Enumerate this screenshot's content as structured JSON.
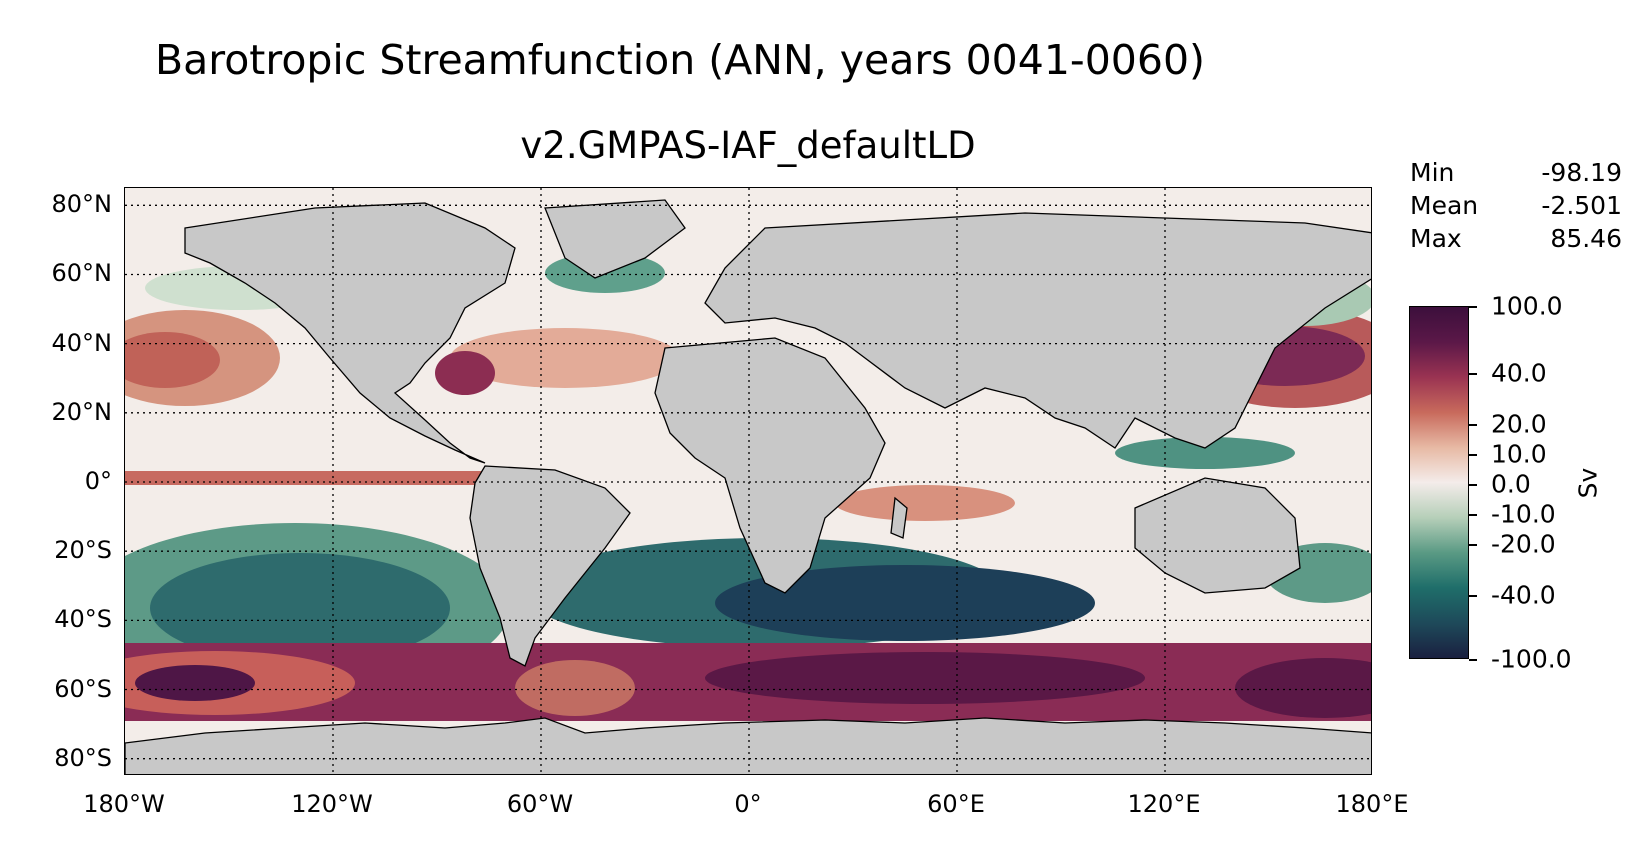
{
  "title": "Barotropic Streamfunction (ANN, years 0041-0060)",
  "subtitle": "v2.GMPAS-IAF_defaultLD",
  "stats": [
    {
      "label": "Min",
      "value": "-98.19"
    },
    {
      "label": "Mean",
      "value": "-2.501"
    },
    {
      "label": "Max",
      "value": "85.46"
    }
  ],
  "lat_labels": [
    "80°N",
    "60°N",
    "40°N",
    "20°N",
    "0°",
    "20°S",
    "40°S",
    "60°S",
    "80°S"
  ],
  "lon_labels": [
    "180°W",
    "120°W",
    "60°W",
    "0°",
    "60°E",
    "120°E",
    "180°E"
  ],
  "colorbar": {
    "unit": "Sv",
    "ticks": [
      "100.0",
      "40.0",
      "20.0",
      "10.0",
      "0.0",
      "-10.0",
      "-20.0",
      "-40.0",
      "-100.0"
    ],
    "colors": [
      "#1a2040",
      "#1e4a5a",
      "#1f6e6a",
      "#5a9a84",
      "#b6cfb9",
      "#f4ecea",
      "#e7b9a4",
      "#c86a5c",
      "#9a3352",
      "#5b1848",
      "#3c0f3c"
    ]
  },
  "map": {
    "land_color": "#c8c8c8",
    "ocean_colors": {
      "positive_strong": "#6e1f4f",
      "positive": "#c45a52",
      "weak_positive": "#eec9bb",
      "neutral": "#f3ede9",
      "weak_negative": "#cfe0cf",
      "negative": "#3d8477",
      "negative_strong": "#1d3f58"
    }
  }
}
